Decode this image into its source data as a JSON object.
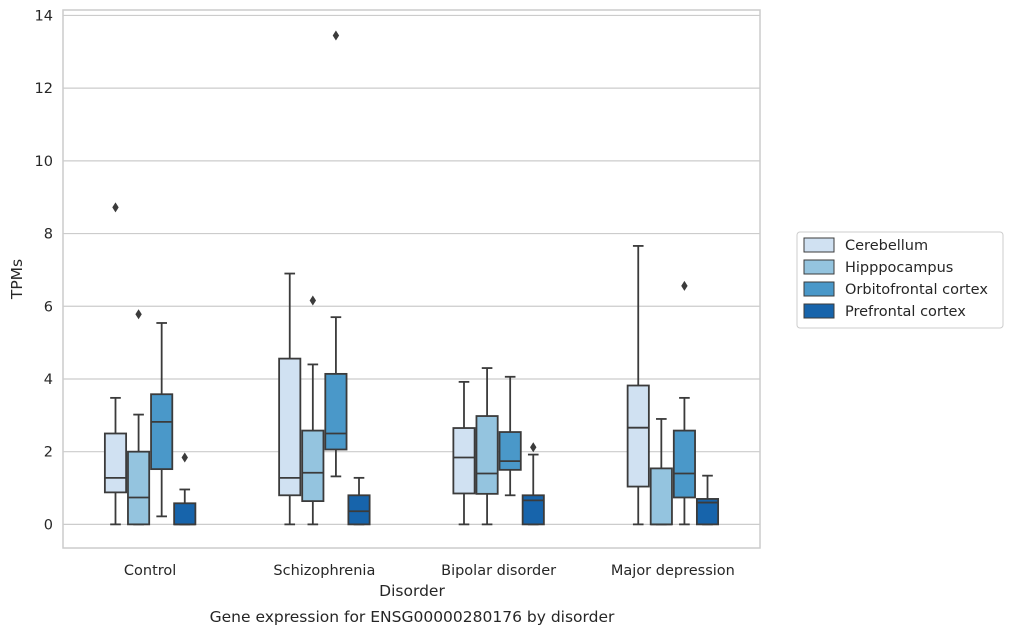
{
  "chart_data": {
    "type": "box",
    "xlabel": "Disorder",
    "ylabel": "TPMs",
    "caption": "Gene expression for ENSG00000280176 by disorder",
    "ylim": [
      -0.65,
      14.15
    ],
    "yticks": [
      "0",
      "2",
      "4",
      "6",
      "8",
      "10",
      "12",
      "14"
    ],
    "grid": "horizontal",
    "legend_position": "right",
    "categories": [
      "Control",
      "Schizophrenia",
      "Bipolar disorder",
      "Major depression"
    ],
    "series": [
      {
        "name": "Cerebellum",
        "color": "#d0e1f2",
        "boxes": [
          {
            "whisker_low": 0,
            "q1": 0.88,
            "median": 1.28,
            "q3": 2.5,
            "whisker_high": 3.48,
            "outliers": [
              8.72
            ]
          },
          {
            "whisker_low": 0,
            "q1": 0.8,
            "median": 1.28,
            "q3": 4.56,
            "whisker_high": 6.9,
            "outliers": []
          },
          {
            "whisker_low": 0,
            "q1": 0.85,
            "median": 1.84,
            "q3": 2.65,
            "whisker_high": 3.92,
            "outliers": []
          },
          {
            "whisker_low": 0,
            "q1": 1.04,
            "median": 2.66,
            "q3": 3.82,
            "whisker_high": 7.66,
            "outliers": []
          }
        ]
      },
      {
        "name": "Hipppocampus",
        "color": "#94c4df",
        "boxes": [
          {
            "whisker_low": 0,
            "q1": 0,
            "median": 0.74,
            "q3": 2.0,
            "whisker_high": 3.02,
            "outliers": [
              5.78
            ]
          },
          {
            "whisker_low": 0,
            "q1": 0.64,
            "median": 1.42,
            "q3": 2.58,
            "whisker_high": 4.4,
            "outliers": [
              6.16
            ]
          },
          {
            "whisker_low": 0,
            "q1": 0.84,
            "median": 1.4,
            "q3": 2.98,
            "whisker_high": 4.3,
            "outliers": []
          },
          {
            "whisker_low": 0,
            "q1": 0,
            "median": 0,
            "q3": 1.54,
            "whisker_high": 2.9,
            "outliers": []
          }
        ]
      },
      {
        "name": "Orbitofrontal cortex",
        "color": "#4a98c9",
        "boxes": [
          {
            "whisker_low": 0.22,
            "q1": 1.52,
            "median": 2.82,
            "q3": 3.58,
            "whisker_high": 5.54,
            "outliers": []
          },
          {
            "whisker_low": 1.32,
            "q1": 2.06,
            "median": 2.5,
            "q3": 4.14,
            "whisker_high": 5.7,
            "outliers": [
              13.45
            ]
          },
          {
            "whisker_low": 0.8,
            "q1": 1.5,
            "median": 1.74,
            "q3": 2.54,
            "whisker_high": 4.06,
            "outliers": []
          },
          {
            "whisker_low": 0,
            "q1": 0.74,
            "median": 1.4,
            "q3": 2.58,
            "whisker_high": 3.48,
            "outliers": [
              6.56
            ]
          }
        ]
      },
      {
        "name": "Prefrontal cortex",
        "color": "#1764ab",
        "boxes": [
          {
            "whisker_low": 0,
            "q1": 0,
            "median": 0,
            "q3": 0.58,
            "whisker_high": 0.96,
            "outliers": [
              1.84
            ]
          },
          {
            "whisker_low": 0,
            "q1": 0,
            "median": 0.36,
            "q3": 0.8,
            "whisker_high": 1.28,
            "outliers": []
          },
          {
            "whisker_low": 0,
            "q1": 0,
            "median": 0.66,
            "q3": 0.8,
            "whisker_high": 1.92,
            "outliers": [
              2.12
            ]
          },
          {
            "whisker_low": 0,
            "q1": 0,
            "median": 0.6,
            "q3": 0.7,
            "whisker_high": 1.34,
            "outliers": []
          }
        ]
      }
    ]
  }
}
